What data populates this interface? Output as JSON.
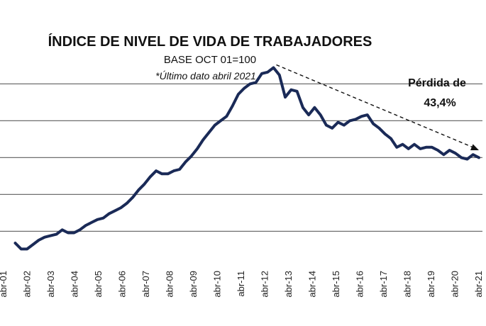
{
  "chart_data": {
    "type": "line",
    "title": "ÍNDICE DE NIVEL DE VIDA DE TRABAJADORES",
    "subtitle": "BASE OCT 01=100",
    "note": "*Último  dato abril 2021",
    "annotation": [
      "Pérdida de",
      "43,4%"
    ],
    "xlabel": "",
    "ylabel": "",
    "ylim": [
      80,
      220
    ],
    "gridlines": [
      100,
      125,
      150,
      175,
      200
    ],
    "grid": true,
    "legend": "none",
    "x_ticks": [
      "abr-01",
      "abr-02",
      "abr-03",
      "abr-04",
      "abr-05",
      "abr-06",
      "abr-07",
      "abr-08",
      "abr-09",
      "abr-10",
      "abr-11",
      "abr-12",
      "abr-13",
      "abr-14",
      "abr-15",
      "abr-16",
      "abr-17",
      "abr-18",
      "abr-19",
      "abr-20",
      "abr-21"
    ],
    "series": [
      {
        "color": "#1a2a57",
        "x": [
          2001.5,
          2001.75,
          2002.0,
          2002.25,
          2002.5,
          2002.75,
          2003.0,
          2003.25,
          2003.5,
          2003.75,
          2004.0,
          2004.25,
          2004.5,
          2004.75,
          2005.0,
          2005.25,
          2005.5,
          2005.75,
          2006.0,
          2006.25,
          2006.5,
          2006.75,
          2007.0,
          2007.25,
          2007.5,
          2007.75,
          2008.0,
          2008.25,
          2008.5,
          2008.75,
          2009.0,
          2009.25,
          2009.5,
          2009.75,
          2010.0,
          2010.25,
          2010.5,
          2010.75,
          2011.0,
          2011.25,
          2011.5,
          2011.75,
          2012.0,
          2012.25,
          2012.5,
          2012.75,
          2013.0,
          2013.25,
          2013.5,
          2013.75,
          2014.0,
          2014.25,
          2014.5,
          2014.75,
          2015.0,
          2015.25,
          2015.5,
          2015.75,
          2016.0,
          2016.25,
          2016.5,
          2016.75,
          2017.0,
          2017.25,
          2017.5,
          2017.75,
          2018.0,
          2018.25,
          2018.5,
          2018.75,
          2019.0,
          2019.25,
          2019.5,
          2019.75,
          2020.0,
          2020.25,
          2020.5,
          2020.75,
          2021.0,
          2021.25
        ],
        "values": [
          92,
          88,
          88,
          91,
          94,
          96,
          97,
          98,
          101,
          99,
          99,
          101,
          104,
          106,
          108,
          109,
          112,
          114,
          116,
          119,
          123,
          128,
          132,
          137,
          141,
          139,
          139,
          141,
          142,
          147,
          151,
          156,
          162,
          167,
          172,
          175,
          178,
          185,
          193,
          197,
          200,
          201,
          207,
          208,
          211,
          206,
          191,
          196,
          195,
          184,
          179,
          184,
          179,
          172,
          170,
          174,
          172,
          175,
          176,
          178,
          179,
          173,
          170,
          166,
          163,
          157,
          159,
          156,
          159,
          156,
          157,
          157,
          155,
          152,
          155,
          153,
          150,
          149,
          152,
          150
        ]
      }
    ]
  }
}
